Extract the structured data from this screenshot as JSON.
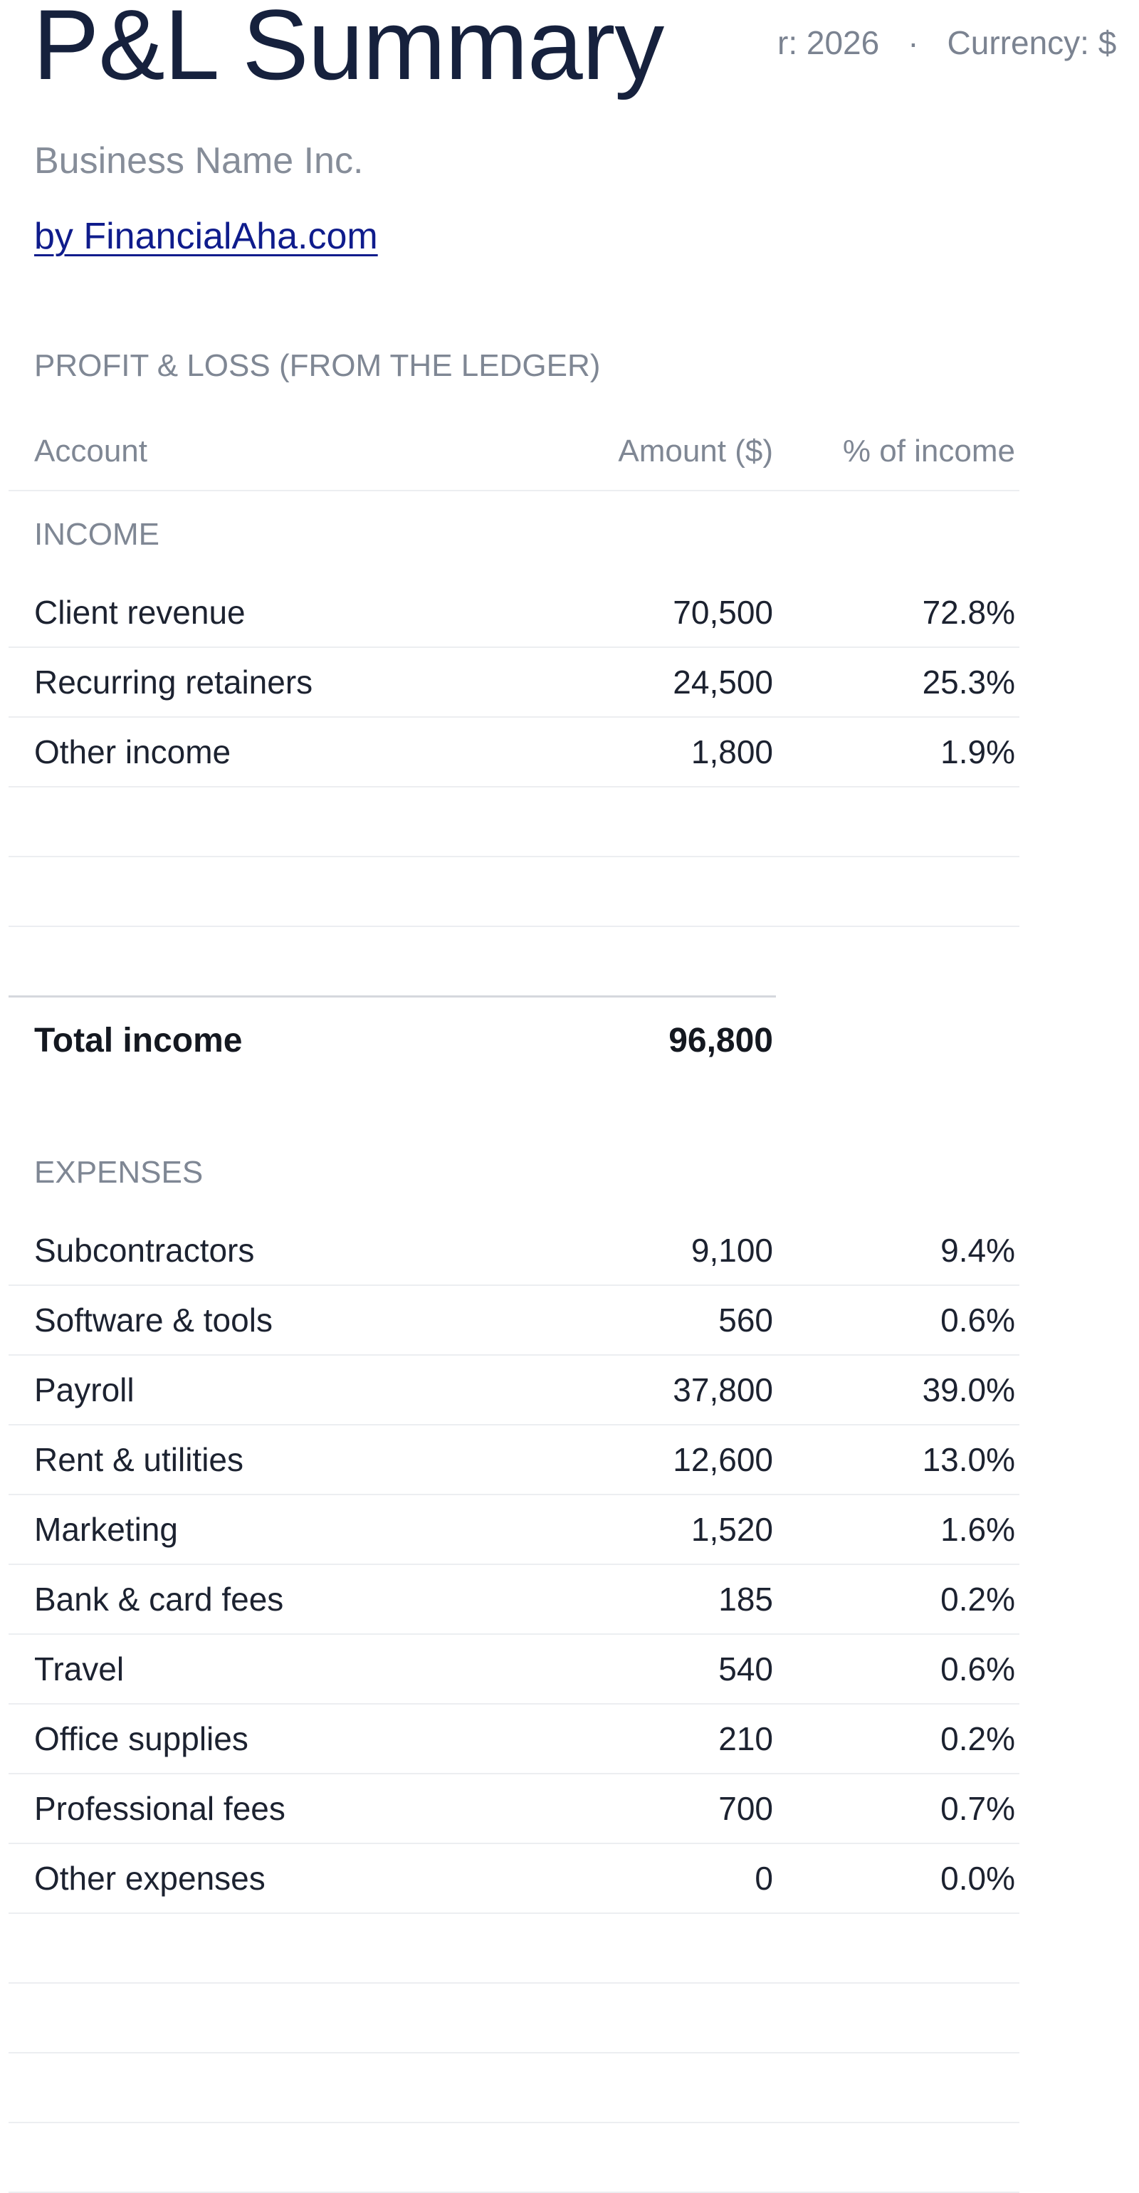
{
  "header": {
    "title": "P&L Summary",
    "year_text": "r: 2026",
    "separator": "·",
    "currency_text": "Currency: $",
    "business_name": "Business Name Inc.",
    "byline": "by FinancialAha.com"
  },
  "section_heading": "PROFIT & LOSS (FROM THE LEDGER)",
  "columns": {
    "account": "Account",
    "amount": "Amount ($)",
    "percent": "% of income"
  },
  "income": {
    "label": "INCOME",
    "rows": [
      {
        "account": "Client revenue",
        "amount": "70,500",
        "percent": "72.8%"
      },
      {
        "account": "Recurring retainers",
        "amount": "24,500",
        "percent": "25.3%"
      },
      {
        "account": "Other income",
        "amount": "1,800",
        "percent": "1.9%"
      }
    ],
    "total_label": "Total income",
    "total_amount": "96,800"
  },
  "expenses": {
    "label": "EXPENSES",
    "rows": [
      {
        "account": "Subcontractors",
        "amount": "9,100",
        "percent": "9.4%"
      },
      {
        "account": "Software & tools",
        "amount": "560",
        "percent": "0.6%"
      },
      {
        "account": "Payroll",
        "amount": "37,800",
        "percent": "39.0%"
      },
      {
        "account": "Rent & utilities",
        "amount": "12,600",
        "percent": "13.0%"
      },
      {
        "account": "Marketing",
        "amount": "1,520",
        "percent": "1.6%"
      },
      {
        "account": "Bank & card fees",
        "amount": "185",
        "percent": "0.2%"
      },
      {
        "account": "Travel",
        "amount": "540",
        "percent": "0.6%"
      },
      {
        "account": "Office supplies",
        "amount": "210",
        "percent": "0.2%"
      },
      {
        "account": "Professional fees",
        "amount": "700",
        "percent": "0.7%"
      },
      {
        "account": "Other expenses",
        "amount": "0",
        "percent": "0.0%"
      }
    ]
  }
}
